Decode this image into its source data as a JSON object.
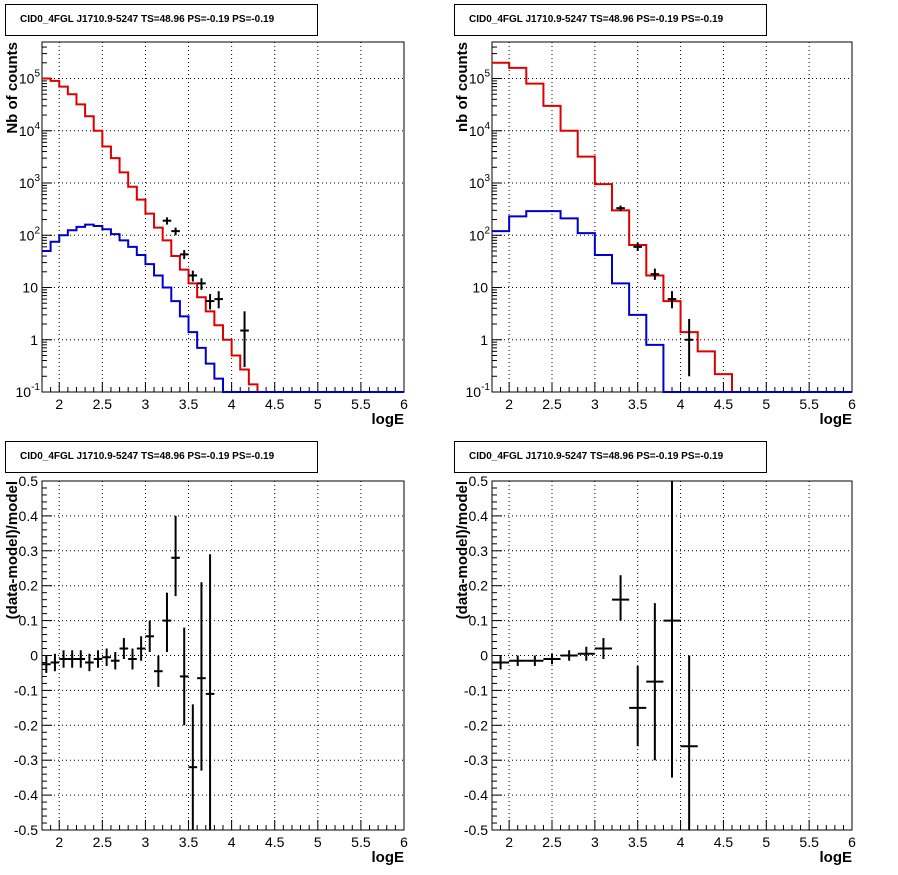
{
  "colors": {
    "data": "#000000",
    "total_model": "#dd0000",
    "source_model": "#0000cc",
    "grid": "#000000"
  },
  "chart_data": [
    {
      "id": "counts-left",
      "type": "line",
      "title": "CID0_4FGL J1710.9-5247 TS=48.96 PS=-0.19 PS=-0.19",
      "xlabel": "logE",
      "ylabel": "Nb of counts",
      "xlim": [
        1.8,
        6.0
      ],
      "ylim": [
        0.1,
        500000
      ],
      "y_scale": "log",
      "grid": true,
      "x_ticks": [
        "2",
        "2.5",
        "3",
        "3.5",
        "4",
        "4.5",
        "5",
        "5.5",
        "6"
      ],
      "y_ticks": [
        {
          "base": "10",
          "exp": "-1"
        },
        {
          "base": "1",
          "exp": ""
        },
        {
          "base": "10",
          "exp": ""
        },
        {
          "base": "10",
          "exp": "2"
        },
        {
          "base": "10",
          "exp": "3"
        },
        {
          "base": "10",
          "exp": "4"
        },
        {
          "base": "10",
          "exp": "5"
        }
      ],
      "y_tick_values": [
        0.1,
        1,
        10,
        100,
        1000,
        10000,
        100000
      ],
      "bin_width": 0.1,
      "series": [
        {
          "role": "total_model",
          "style": "step",
          "x": [
            1.8,
            1.9,
            2.0,
            2.1,
            2.2,
            2.3,
            2.4,
            2.5,
            2.6,
            2.7,
            2.8,
            2.9,
            3.0,
            3.1,
            3.2,
            3.3,
            3.4,
            3.5,
            3.6,
            3.7,
            3.8,
            3.9,
            4.0,
            4.1,
            4.2,
            4.3,
            4.4,
            4.5,
            4.6,
            4.7,
            4.8,
            4.9,
            5.0,
            5.1,
            5.2,
            5.3,
            5.4,
            5.5,
            5.6,
            5.7,
            5.8,
            5.9
          ],
          "y": [
            100000,
            90000,
            70000,
            50000,
            32000,
            19000,
            10000,
            5000,
            3000,
            1600,
            850,
            480,
            260,
            140,
            80,
            40,
            22,
            12,
            6.5,
            3.5,
            1.9,
            1.0,
            0.5,
            0.27,
            0.14,
            0.1,
            0.1,
            0.1,
            0.1,
            0.1,
            0.1,
            0.1,
            0.1,
            0.1,
            0.1,
            0.1,
            0.1,
            0.1,
            0.1,
            0.1,
            0.1,
            0.1
          ]
        },
        {
          "role": "source_model",
          "style": "step",
          "x": [
            1.8,
            1.9,
            2.0,
            2.1,
            2.2,
            2.3,
            2.4,
            2.5,
            2.6,
            2.7,
            2.8,
            2.9,
            3.0,
            3.1,
            3.2,
            3.3,
            3.4,
            3.5,
            3.6,
            3.7,
            3.8,
            3.9,
            4.0,
            4.1,
            4.2,
            4.3,
            4.4,
            4.5,
            4.6,
            4.7,
            4.8,
            4.9,
            5.0,
            5.1,
            5.2,
            5.3,
            5.4,
            5.5,
            5.6,
            5.7,
            5.8,
            5.9
          ],
          "y": [
            50,
            75,
            100,
            125,
            145,
            160,
            150,
            130,
            105,
            80,
            60,
            42,
            28,
            17,
            10,
            5.5,
            2.8,
            1.4,
            0.7,
            0.35,
            0.18,
            0.1,
            0.1,
            0.1,
            0.1,
            0.1,
            0.1,
            0.1,
            0.1,
            0.1,
            0.1,
            0.1,
            0.1,
            0.1,
            0.1,
            0.1,
            0.1,
            0.1,
            0.1,
            0.1,
            0.1,
            0.1
          ]
        },
        {
          "role": "data",
          "style": "points",
          "x": [
            3.25,
            3.35,
            3.45,
            3.55,
            3.65,
            3.75,
            3.85,
            4.15
          ],
          "y": [
            190,
            120,
            43,
            17,
            12,
            5.5,
            6,
            1.5
          ],
          "ylo": [
            160,
            100,
            35,
            13,
            9,
            3.8,
            4,
            0.3
          ],
          "yhi": [
            220,
            140,
            52,
            21,
            15,
            7.5,
            8.5,
            3.5
          ]
        }
      ]
    },
    {
      "id": "counts-right",
      "type": "line",
      "title": "CID0_4FGL J1710.9-5247 TS=48.96 PS=-0.19 PS=-0.19",
      "xlabel": "logE",
      "ylabel": "nb of counts",
      "xlim": [
        1.8,
        6.0
      ],
      "ylim": [
        0.1,
        500000
      ],
      "y_scale": "log",
      "grid": true,
      "x_ticks": [
        "2",
        "2.5",
        "3",
        "3.5",
        "4",
        "4.5",
        "5",
        "5.5",
        "6"
      ],
      "y_ticks": [
        {
          "base": "10",
          "exp": "-1"
        },
        {
          "base": "1",
          "exp": ""
        },
        {
          "base": "10",
          "exp": ""
        },
        {
          "base": "10",
          "exp": "2"
        },
        {
          "base": "10",
          "exp": "3"
        },
        {
          "base": "10",
          "exp": "4"
        },
        {
          "base": "10",
          "exp": "5"
        }
      ],
      "y_tick_values": [
        0.1,
        1,
        10,
        100,
        1000,
        10000,
        100000
      ],
      "bin_width": 0.2,
      "series": [
        {
          "role": "total_model",
          "style": "step",
          "x": [
            1.8,
            2.0,
            2.2,
            2.4,
            2.6,
            2.8,
            3.0,
            3.2,
            3.4,
            3.6,
            3.8,
            4.0,
            4.2,
            4.4,
            4.6,
            4.8,
            5.0,
            5.2,
            5.4,
            5.6,
            5.8
          ],
          "y": [
            200000,
            160000,
            80000,
            30000,
            10000,
            3200,
            950,
            300,
            65,
            17,
            5.5,
            1.4,
            0.6,
            0.22,
            0.1,
            0.1,
            0.1,
            0.1,
            0.1,
            0.1,
            0.1
          ]
        },
        {
          "role": "source_model",
          "style": "step",
          "x": [
            1.8,
            2.0,
            2.2,
            2.4,
            2.6,
            2.8,
            3.0,
            3.2,
            3.4,
            3.6,
            3.8,
            4.0,
            4.2,
            4.4,
            4.6,
            4.8,
            5.0,
            5.2,
            5.4,
            5.6,
            5.8
          ],
          "y": [
            120,
            230,
            290,
            290,
            210,
            110,
            42,
            12,
            3,
            0.8,
            0.1,
            0.1,
            0.1,
            0.1,
            0.1,
            0.1,
            0.1,
            0.1,
            0.1,
            0.1,
            0.1
          ]
        },
        {
          "role": "data",
          "style": "points",
          "x": [
            3.3,
            3.5,
            3.7,
            3.9,
            4.1
          ],
          "y": [
            330,
            60,
            18,
            6,
            1
          ],
          "ylo": [
            290,
            50,
            14,
            4,
            0.2
          ],
          "yhi": [
            370,
            72,
            23,
            8.5,
            2.5
          ]
        }
      ]
    },
    {
      "id": "residuals-left",
      "type": "scatter",
      "title": "CID0_4FGL J1710.9-5247 TS=48.96 PS=-0.19 PS=-0.19",
      "xlabel": "logE",
      "ylabel": "(data-model)/model",
      "xlim": [
        1.8,
        6.0
      ],
      "ylim": [
        -0.5,
        0.5
      ],
      "y_scale": "linear",
      "grid": true,
      "x_ticks": [
        "2",
        "2.5",
        "3",
        "3.5",
        "4",
        "4.5",
        "5",
        "5.5",
        "6"
      ],
      "y_ticks": [
        {
          "base": "-0.5",
          "exp": ""
        },
        {
          "base": "-0.4",
          "exp": ""
        },
        {
          "base": "-0.3",
          "exp": ""
        },
        {
          "base": "-0.2",
          "exp": ""
        },
        {
          "base": "-0.1",
          "exp": ""
        },
        {
          "base": "0",
          "exp": ""
        },
        {
          "base": "0.1",
          "exp": ""
        },
        {
          "base": "0.2",
          "exp": ""
        },
        {
          "base": "0.3",
          "exp": ""
        },
        {
          "base": "0.4",
          "exp": ""
        },
        {
          "base": "0.5",
          "exp": ""
        }
      ],
      "y_tick_values": [
        -0.5,
        -0.4,
        -0.3,
        -0.2,
        -0.1,
        0,
        0.1,
        0.2,
        0.3,
        0.4,
        0.5
      ],
      "series": [
        {
          "role": "data",
          "style": "points",
          "x": [
            1.85,
            1.95,
            2.05,
            2.15,
            2.25,
            2.35,
            2.45,
            2.55,
            2.65,
            2.75,
            2.85,
            2.95,
            3.05,
            3.15,
            3.25,
            3.35,
            3.45,
            3.55,
            3.65,
            3.75
          ],
          "y": [
            -0.025,
            -0.02,
            -0.01,
            -0.01,
            -0.01,
            -0.02,
            -0.01,
            -0.005,
            -0.015,
            0.02,
            -0.01,
            0.02,
            0.055,
            -0.045,
            0.1,
            0.28,
            -0.06,
            -0.32,
            -0.065,
            -0.11
          ],
          "ylo": [
            -0.05,
            -0.045,
            -0.035,
            -0.035,
            -0.035,
            -0.045,
            -0.035,
            -0.03,
            -0.04,
            -0.01,
            -0.04,
            -0.015,
            0.01,
            -0.09,
            0.01,
            0.17,
            -0.2,
            -0.5,
            -0.33,
            -0.5
          ],
          "yhi": [
            0.0,
            0.005,
            0.015,
            0.015,
            0.015,
            0.005,
            0.015,
            0.02,
            0.01,
            0.05,
            0.02,
            0.055,
            0.1,
            0.0,
            0.18,
            0.4,
            0.08,
            -0.14,
            0.21,
            0.29
          ],
          "xerr": 0.05
        }
      ]
    },
    {
      "id": "residuals-right",
      "type": "scatter",
      "title": "CID0_4FGL J1710.9-5247 TS=48.96 PS=-0.19 PS=-0.19",
      "xlabel": "logE",
      "ylabel": "(data-model)/model",
      "xlim": [
        1.8,
        6.0
      ],
      "ylim": [
        -0.5,
        0.5
      ],
      "y_scale": "linear",
      "grid": true,
      "x_ticks": [
        "2",
        "2.5",
        "3",
        "3.5",
        "4",
        "4.5",
        "5",
        "5.5",
        "6"
      ],
      "y_ticks": [
        {
          "base": "-0.5",
          "exp": ""
        },
        {
          "base": "-0.4",
          "exp": ""
        },
        {
          "base": "-0.3",
          "exp": ""
        },
        {
          "base": "-0.2",
          "exp": ""
        },
        {
          "base": "-0.1",
          "exp": ""
        },
        {
          "base": "0",
          "exp": ""
        },
        {
          "base": "0.1",
          "exp": ""
        },
        {
          "base": "0.2",
          "exp": ""
        },
        {
          "base": "0.3",
          "exp": ""
        },
        {
          "base": "0.4",
          "exp": ""
        },
        {
          "base": "0.5",
          "exp": ""
        }
      ],
      "y_tick_values": [
        -0.5,
        -0.4,
        -0.3,
        -0.2,
        -0.1,
        0,
        0.1,
        0.2,
        0.3,
        0.4,
        0.5
      ],
      "series": [
        {
          "role": "data",
          "style": "points",
          "x": [
            1.9,
            2.1,
            2.3,
            2.5,
            2.7,
            2.9,
            3.1,
            3.3,
            3.5,
            3.7,
            3.9,
            4.1
          ],
          "y": [
            -0.02,
            -0.015,
            -0.015,
            -0.01,
            0.0,
            0.005,
            0.02,
            0.16,
            -0.15,
            -0.075,
            0.1,
            -0.26
          ],
          "ylo": [
            -0.04,
            -0.03,
            -0.03,
            -0.025,
            -0.015,
            -0.015,
            -0.01,
            0.1,
            -0.26,
            -0.3,
            -0.35,
            -0.5
          ],
          "yhi": [
            0.0,
            0.0,
            0.0,
            0.005,
            0.015,
            0.025,
            0.05,
            0.23,
            -0.03,
            0.15,
            0.5,
            0.0
          ],
          "xerr": 0.1
        }
      ]
    }
  ]
}
